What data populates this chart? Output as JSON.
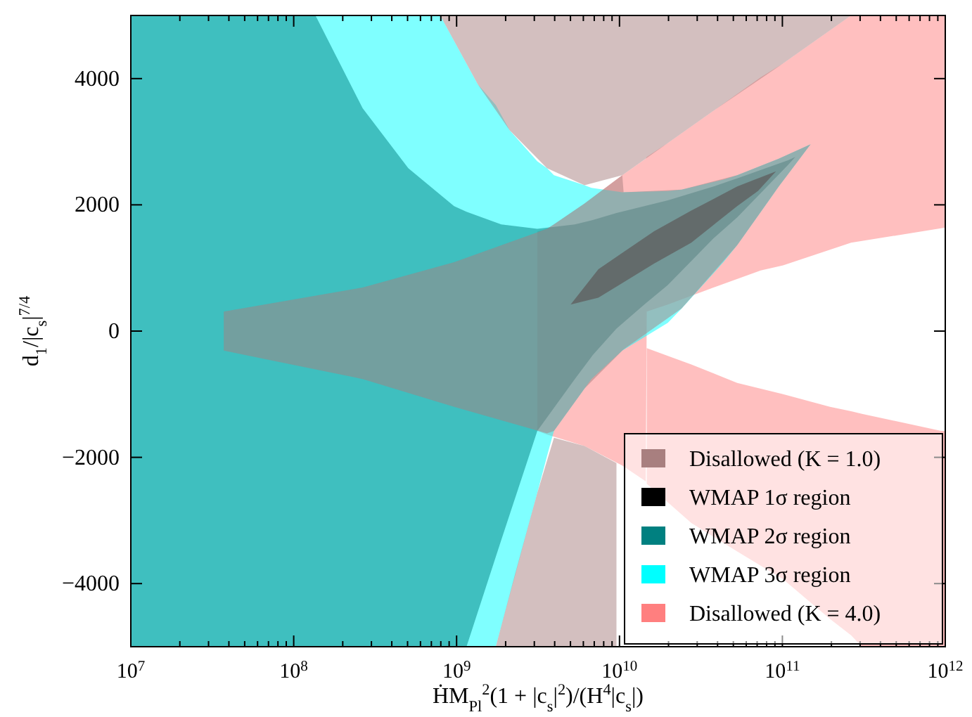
{
  "chart_data": {
    "type": "area",
    "xlabel": "ḢM$_{Pl}$$^{2}$(1 + |c$_{s}$|$^{2}$)/(H$^{4}$|c$_{s}$|)",
    "ylabel": "d$_{1}$/|c$_{s}$|$^{7/4}$",
    "log": "x",
    "legend": "bottom right",
    "xlim": [
      10000000.0,
      1000000000000.0
    ],
    "ylim": [
      -5000,
      5000
    ],
    "xticks": [
      {
        "value": 10000000.0,
        "label": "10$^{7}$"
      },
      {
        "value": 20000000.0,
        "label": null
      },
      {
        "value": 30000000.0,
        "label": null
      },
      {
        "value": 40000000.0,
        "label": null
      },
      {
        "value": 50000000.0,
        "label": null
      },
      {
        "value": 60000000.0,
        "label": null
      },
      {
        "value": 70000000.0,
        "label": null
      },
      {
        "value": 80000000.0,
        "label": null
      },
      {
        "value": 90000000.0,
        "label": null
      },
      {
        "value": 100000000.0,
        "label": "10$^{8}$"
      },
      {
        "value": 200000000.0,
        "label": null
      },
      {
        "value": 300000000.0,
        "label": null
      },
      {
        "value": 400000000.0,
        "label": null
      },
      {
        "value": 500000000.0,
        "label": null
      },
      {
        "value": 600000000.0,
        "label": null
      },
      {
        "value": 700000000.0,
        "label": null
      },
      {
        "value": 800000000.0,
        "label": null
      },
      {
        "value": 900000000.0,
        "label": null
      },
      {
        "value": 1000000000.0,
        "label": "10$^{9}$"
      },
      {
        "value": 2000000000.0,
        "label": null
      },
      {
        "value": 3000000000.0,
        "label": null
      },
      {
        "value": 4000000000.0,
        "label": null
      },
      {
        "value": 5000000000.0,
        "label": null
      },
      {
        "value": 6000000000.0,
        "label": null
      },
      {
        "value": 7000000000.0,
        "label": null
      },
      {
        "value": 8000000000.0,
        "label": null
      },
      {
        "value": 9000000000.0,
        "label": null
      },
      {
        "value": 10000000000.0,
        "label": "10$^{10}$"
      },
      {
        "value": 20000000000.0,
        "label": null
      },
      {
        "value": 30000000000.0,
        "label": null
      },
      {
        "value": 40000000000.0,
        "label": null
      },
      {
        "value": 50000000000.0,
        "label": null
      },
      {
        "value": 60000000000.0,
        "label": null
      },
      {
        "value": 70000000000.0,
        "label": null
      },
      {
        "value": 80000000000.0,
        "label": null
      },
      {
        "value": 90000000000.0,
        "label": null
      },
      {
        "value": 100000000000.0,
        "label": "10$^{11}$"
      },
      {
        "value": 200000000000.0,
        "label": null
      },
      {
        "value": 300000000000.0,
        "label": null
      },
      {
        "value": 400000000000.0,
        "label": null
      },
      {
        "value": 500000000000.0,
        "label": null
      },
      {
        "value": 600000000000.0,
        "label": null
      },
      {
        "value": 700000000000.0,
        "label": null
      },
      {
        "value": 800000000000.0,
        "label": null
      },
      {
        "value": 900000000000.0,
        "label": null
      },
      {
        "value": 1000000000000.0,
        "label": "10$^{12}$"
      }
    ],
    "yticks": [
      {
        "value": -4000,
        "label": "−4000"
      },
      {
        "value": -2000,
        "label": "−2000"
      },
      0,
      2000,
      4000
    ],
    "series": [
      {
        "name": "Disallowed (K = 4.0)",
        "color": "#ff7f7f",
        "x": [
          3130000000.0,
          3590000000.0,
          6100000000.0,
          10400000000.0,
          14500000000.0,
          14700000000.0,
          19800000000.0,
          37800000000.0,
          73600000000.0,
          101000000000.0,
          264000000000.0,
          1000000000000.0
        ],
        "values": [
          null,
          null,
          null,
          null,
          null,
          null,
          null,
          null,
          null,
          null,
          null,
          null
        ],
        "upper": [
          1580,
          1620,
          2020,
          2470,
          2730,
          2760,
          2980,
          3490,
          4020,
          4240,
          5000,
          5000
        ],
        "lower": [
          -1580,
          -1640,
          -1820,
          -2130,
          -2380,
          310,
          420,
          690,
          960,
          1040,
          1400,
          1640
        ]
      },
      {
        "color": "#ff7f7f",
        "x": [
          14700000000.0,
          27600000000.0,
          52800000000.0,
          101000000000.0,
          196000000000.0,
          264000000000.0,
          308000000000.0,
          943000000000.0,
          1000000000000.0
        ],
        "values": [
          null,
          null,
          null,
          null,
          null,
          null,
          null,
          null,
          null
        ],
        "upper": [
          -270,
          -530,
          -820,
          -1000,
          -1200,
          -1270,
          -1310,
          -1580,
          -1580
        ],
        "lower": [
          -2420,
          -3040,
          -3490,
          -3930,
          -4560,
          -4820,
          -5000,
          -5000,
          -5000
        ]
      },
      {
        "name": "WMAP 3σ region",
        "color": "#00ffff",
        "x": [
          10000000.0,
          793000000.0,
          1350000000.0,
          1740000000.0,
          2120000000.0,
          3130000000.0,
          3590000000.0,
          3960000000.0,
          6100000000.0,
          6730000000.0,
          10400000000.0,
          19800000000.0,
          24100000000.0,
          43400000000.0,
          52800000000.0,
          82800000000.0,
          95000000000.0,
          149000000000.0
        ],
        "values": [
          null,
          null,
          null,
          null,
          null,
          null,
          null,
          null,
          null,
          null,
          null,
          null,
          null,
          null,
          null,
          null,
          null,
          null
        ],
        "upper": [
          5000,
          5000,
          3910,
          3580,
          3180,
          2690,
          2580,
          2470,
          2310,
          2270,
          2200,
          2220,
          2240,
          2400,
          2470,
          2670,
          2730,
          2960
        ],
        "lower": [
          -5000,
          -5000,
          -5000,
          -5000,
          -4180,
          -2560,
          -1980,
          -1580,
          -910,
          -760,
          -310,
          130,
          360,
          1090,
          1360,
          2070,
          2290,
          2960
        ]
      },
      {
        "name": "WMAP 2σ region",
        "color": "#008080",
        "x": [
          10000000.0,
          136000000.0,
          265000000.0,
          505000000.0,
          965000000.0,
          1150000000.0,
          1880000000.0,
          3130000000.0,
          5320000000.0,
          6860000000.0,
          9580000000.0,
          14200000000.0,
          19800000000.0,
          37800000000.0,
          52800000000.0,
          109000000000.0,
          120000000000.0
        ],
        "values": [
          null,
          null,
          null,
          null,
          null,
          null,
          null,
          null,
          null,
          null,
          null,
          null,
          null,
          null,
          null,
          null,
          null
        ],
        "upper": [
          5000,
          5000,
          3530,
          2580,
          1980,
          1890,
          1690,
          1620,
          1690,
          1760,
          1870,
          1980,
          2070,
          2290,
          2420,
          2710,
          2760
        ],
        "lower": [
          -5000,
          -5000,
          -5000,
          -5000,
          -5000,
          -5000,
          -3310,
          -1580,
          -760,
          -380,
          40,
          420,
          730,
          1470,
          1800,
          2640,
          2760
        ]
      },
      {
        "name": "WMAP 1σ region",
        "color": "#000000",
        "x": [
          5010000000.0,
          7420000000.0,
          10400000000.0,
          16300000000.0,
          27600000000.0,
          52800000000.0,
          70800000000.0,
          91400000000.0
        ],
        "values": [
          null,
          null,
          null,
          null,
          null,
          null,
          null,
          null
        ],
        "upper": [
          420,
          980,
          1240,
          1580,
          1910,
          2290,
          2420,
          2530
        ],
        "lower": [
          420,
          530,
          760,
          1070,
          1400,
          1980,
          2220,
          2530
        ]
      },
      {
        "name": "Disallowed (K = 1.0)",
        "color": "#a87f7f",
        "x": [
          37200000.0,
          265000000.0,
          965000000.0,
          3590000000.0,
          3960000000.0,
          6100000000.0,
          10400000000.0,
          10600000000.0,
          24100000000.0,
          52800000000.0,
          95000000000.0,
          149000000000.0
        ],
        "values": [
          null,
          null,
          null,
          null,
          null,
          null,
          null,
          null,
          null,
          null,
          null,
          null
        ],
        "upper": [
          310,
          690,
          1090,
          1620,
          1690,
          2020,
          2470,
          2200,
          2240,
          2470,
          2730,
          2960
        ],
        "lower": [
          -310,
          -760,
          -1200,
          -1620,
          -1580,
          -910,
          -310,
          -290,
          360,
          1360,
          2290,
          2960
        ]
      },
      {
        "color": "#a87f7f",
        "x": [
          793000000.0,
          1350000000.0,
          2120000000.0,
          3590000000.0,
          6100000000.0,
          10400000000.0,
          19800000000.0,
          37800000000.0,
          101000000000.0,
          264000000000.0
        ],
        "values": [
          null,
          null,
          null,
          null,
          null,
          null,
          null,
          null,
          null,
          null
        ],
        "upper": [
          5000,
          5000,
          5000,
          5000,
          5000,
          5000,
          5000,
          5000,
          5000,
          5000
        ],
        "lower": [
          5000,
          3910,
          3180,
          2580,
          2310,
          2470,
          2980,
          3490,
          4240,
          5000
        ]
      },
      {
        "color": "#a87f7f",
        "x": [
          1740000000.0,
          2290000000.0,
          3130000000.0,
          3960000000.0,
          6100000000.0,
          9580000000.0
        ],
        "values": [
          null,
          null,
          null,
          null,
          null,
          null
        ],
        "upper": [
          -5000,
          -3840,
          -2560,
          -1690,
          -1820,
          -2090
        ],
        "lower": [
          -5000,
          -5000,
          -5000,
          -5000,
          -5000,
          -5000
        ]
      }
    ]
  }
}
